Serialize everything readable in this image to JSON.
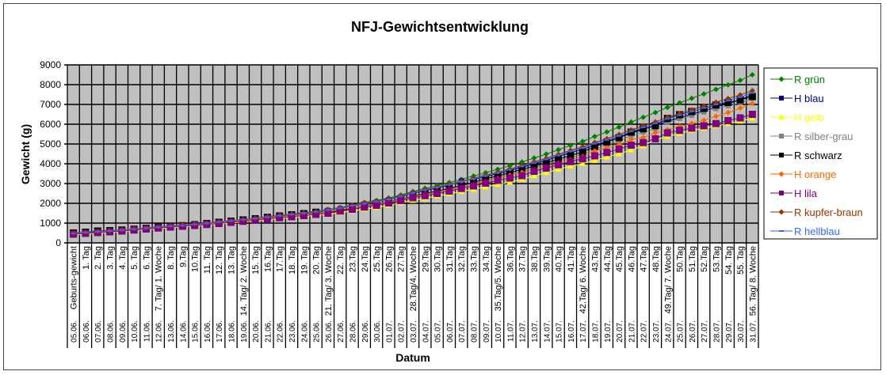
{
  "chart_data": {
    "type": "line",
    "title": "NFJ-Gewichtsentwicklung",
    "xlabel": "Datum",
    "ylabel": "Gewicht (g)",
    "ylim": [
      0,
      9000
    ],
    "yticks": [
      0,
      1000,
      2000,
      3000,
      4000,
      5000,
      6000,
      7000,
      8000,
      9000
    ],
    "grid": true,
    "legend_position": "right",
    "categories": [
      "Geburts-gewicht",
      "1. Tag",
      "2. Tag",
      "3. Tag",
      "4. Tag",
      "5. Tag",
      "6. Tag",
      "7. Tag/ 1. Woche",
      "8. Tag",
      "9.Tag",
      "10.Tag",
      "11. Tag",
      "12. Tag",
      "13. Tag",
      "14. Tag/ 2. Woche",
      "15. Tag",
      "16.Tag",
      "17.Tag",
      "18. Tag",
      "19. Tag",
      "20. Tag",
      "21. Tag/ 3. Woche",
      "22. Tag",
      "23.Tag",
      "24.Tag",
      "25.Tag",
      "26.Tag",
      "27.Tag",
      "28.Tag/4. Woche",
      "29.Tag",
      "30.Tag",
      "31.Tag",
      "32.Tag",
      "33.Tag",
      "34.Tag",
      "35.Tag/5. Woche",
      "36.Tag",
      "37.Tag",
      "38.Tag",
      "39.Tag",
      "40.Tag",
      "41.Tag",
      "42.Tag/ 6. Woche",
      "43.Tag",
      "44.Tag",
      "45.Tag",
      "46.Tag",
      "47.Tag",
      "48.Tag",
      "49.Tag/ 7. Woche",
      "50.Tag",
      "51.Tag",
      "52.Tag",
      "53.Tag",
      "54. Tag",
      "55. Tag",
      "56. Tag/ 8. Woche"
    ],
    "dates": [
      "05.06.",
      "06.06.",
      "07.06.",
      "08.06.",
      "09.06.",
      "10.06.",
      "11.06.",
      "12.06.",
      "13.06.",
      "14.06.",
      "15.06.",
      "16.06.",
      "17.06.",
      "18.06.",
      "19.06.",
      "20.06.",
      "21.06.",
      "22.06.",
      "23.06.",
      "24.06.",
      "25.06.",
      "26.06.",
      "27.06.",
      "28.06.",
      "29.06.",
      "30.06.",
      "01.07.",
      "02.07.",
      "03.07.",
      "04.07.",
      "05.07.",
      "06.07.",
      "07.07.",
      "08.07.",
      "09.07.",
      "10.07.",
      "11.07.",
      "12.07.",
      "13.07.",
      "14.07.",
      "15.07.",
      "16.07.",
      "17.07.",
      "18.07.",
      "19.07.",
      "20.07.",
      "21.07.",
      "22.07.",
      "23.07.",
      "24.07.",
      "25.07.",
      "26.07.",
      "27.07.",
      "28.07.",
      "29.07.",
      "30.07.",
      "31.07."
    ],
    "series": [
      {
        "name": "R grün",
        "color": "#008000",
        "marker": "diamond",
        "values": [
          480,
          520,
          560,
          600,
          640,
          690,
          740,
          790,
          850,
          890,
          940,
          1000,
          1050,
          1110,
          1180,
          1240,
          1320,
          1390,
          1460,
          1520,
          1600,
          1690,
          1790,
          1920,
          2050,
          2150,
          2270,
          2420,
          2600,
          2760,
          2900,
          3050,
          3210,
          3380,
          3550,
          3720,
          3900,
          4090,
          4290,
          4490,
          4710,
          4930,
          5130,
          5380,
          5610,
          5850,
          6110,
          6350,
          6590,
          6850,
          7080,
          7310,
          7530,
          7760,
          7990,
          8220,
          8500
        ]
      },
      {
        "name": "H blau",
        "color": "#000080",
        "marker": "square",
        "values": [
          490,
          530,
          570,
          610,
          650,
          700,
          750,
          800,
          850,
          890,
          940,
          1000,
          1060,
          1120,
          1180,
          1250,
          1320,
          1390,
          1460,
          1520,
          1590,
          1660,
          1750,
          1870,
          1980,
          2080,
          2190,
          2330,
          2500,
          2640,
          2770,
          2910,
          3150,
          3200,
          3350,
          3500,
          3660,
          3830,
          4000,
          4170,
          4370,
          4560,
          4730,
          4940,
          5120,
          5330,
          5540,
          5740,
          5930,
          6150,
          6330,
          6510,
          6680,
          6870,
          7050,
          7230,
          7500
        ]
      },
      {
        "name": "H gelb",
        "color": "#FFFF00",
        "marker": "triangle",
        "values": [
          410,
          450,
          490,
          530,
          570,
          620,
          670,
          720,
          770,
          810,
          850,
          900,
          950,
          1000,
          1060,
          1110,
          1170,
          1230,
          1280,
          1340,
          1400,
          1450,
          1520,
          1620,
          1700,
          1780,
          1900,
          2030,
          2140,
          2260,
          2360,
          2480,
          2600,
          2710,
          2830,
          2950,
          3070,
          3220,
          3390,
          3550,
          3720,
          3880,
          4010,
          4170,
          4340,
          4500,
          4700,
          4900,
          5210,
          5380,
          5530,
          5680,
          5790,
          5920,
          6030,
          6150,
          6300
        ]
      },
      {
        "name": "R silber-grau",
        "color": "#808080",
        "marker": "square",
        "values": [
          480,
          520,
          560,
          600,
          640,
          680,
          730,
          780,
          830,
          860,
          910,
          970,
          1030,
          1080,
          1140,
          1200,
          1260,
          1330,
          1390,
          1440,
          1510,
          1570,
          1650,
          1760,
          1860,
          1950,
          2060,
          2200,
          2350,
          2480,
          2600,
          2730,
          2870,
          3020,
          3180,
          3320,
          3470,
          3640,
          3800,
          3960,
          4140,
          4320,
          4490,
          4720,
          4950,
          5160,
          5420,
          5600,
          5770,
          6090,
          6280,
          6440,
          6610,
          6780,
          6930,
          7080,
          7300
        ]
      },
      {
        "name": "R schwarz",
        "color": "#000000",
        "marker": "bigsquare",
        "values": [
          500,
          540,
          600,
          620,
          650,
          690,
          740,
          790,
          840,
          870,
          920,
          980,
          1040,
          1100,
          1160,
          1220,
          1290,
          1360,
          1420,
          1480,
          1550,
          1560,
          1620,
          1770,
          1880,
          1970,
          2080,
          2210,
          2360,
          2500,
          2620,
          2760,
          2900,
          3060,
          3240,
          3390,
          3550,
          3720,
          3880,
          4050,
          4230,
          4420,
          4600,
          4860,
          5100,
          5320,
          5600,
          5770,
          5930,
          6290,
          6480,
          6640,
          6800,
          6970,
          7100,
          7230,
          7400
        ]
      },
      {
        "name": "H orange",
        "color": "#FF6600",
        "marker": "diamond",
        "values": [
          470,
          510,
          550,
          590,
          630,
          680,
          720,
          770,
          820,
          860,
          910,
          960,
          1010,
          1070,
          1130,
          1190,
          1250,
          1320,
          1380,
          1440,
          1500,
          1580,
          1670,
          1780,
          1880,
          1960,
          2060,
          2190,
          2330,
          2460,
          2570,
          2690,
          2810,
          2950,
          3100,
          3260,
          3420,
          3560,
          3700,
          3850,
          4030,
          4200,
          4360,
          4650,
          4800,
          4960,
          5230,
          5330,
          5560,
          5730,
          5880,
          6040,
          6200,
          6400,
          6590,
          6810,
          7050
        ]
      },
      {
        "name": "H lila",
        "color": "#800080",
        "marker": "bigsquare",
        "values": [
          440,
          480,
          520,
          560,
          600,
          650,
          700,
          750,
          800,
          840,
          880,
          930,
          980,
          1040,
          1090,
          1150,
          1210,
          1270,
          1320,
          1380,
          1440,
          1500,
          1610,
          1700,
          1810,
          1900,
          2020,
          2140,
          2280,
          2390,
          2500,
          2620,
          2750,
          2880,
          3020,
          3160,
          3280,
          3400,
          3620,
          3780,
          3950,
          4110,
          4250,
          4400,
          4570,
          4740,
          4940,
          5070,
          5260,
          5560,
          5690,
          5800,
          5920,
          6030,
          6180,
          6320,
          6500
        ]
      },
      {
        "name": "R kupfer-braun",
        "color": "#993300",
        "marker": "diamond",
        "values": [
          500,
          540,
          580,
          620,
          660,
          710,
          760,
          810,
          860,
          900,
          950,
          1010,
          1070,
          1130,
          1190,
          1250,
          1320,
          1390,
          1460,
          1520,
          1590,
          1690,
          1780,
          1910,
          2020,
          2120,
          2230,
          2380,
          2550,
          2700,
          2830,
          2970,
          3110,
          3270,
          3430,
          3580,
          3740,
          3920,
          4100,
          4280,
          4480,
          4680,
          4860,
          5080,
          5270,
          5480,
          5710,
          5920,
          6120,
          6350,
          6540,
          6730,
          6920,
          7110,
          7300,
          7480,
          7700
        ]
      },
      {
        "name": "R hellblau",
        "color": "#3366FF",
        "marker": "dash",
        "values": [
          480,
          520,
          560,
          600,
          640,
          690,
          740,
          790,
          840,
          880,
          930,
          990,
          1050,
          1110,
          1170,
          1230,
          1300,
          1370,
          1440,
          1500,
          1570,
          1670,
          1760,
          1880,
          1990,
          2090,
          2200,
          2350,
          2520,
          2670,
          2800,
          2940,
          3080,
          3230,
          3390,
          3540,
          3700,
          3880,
          4050,
          4230,
          4430,
          4630,
          4800,
          5020,
          5210,
          5410,
          5640,
          5840,
          6040,
          6270,
          6450,
          6640,
          6820,
          7000,
          7190,
          7370,
          7580
        ]
      }
    ]
  }
}
